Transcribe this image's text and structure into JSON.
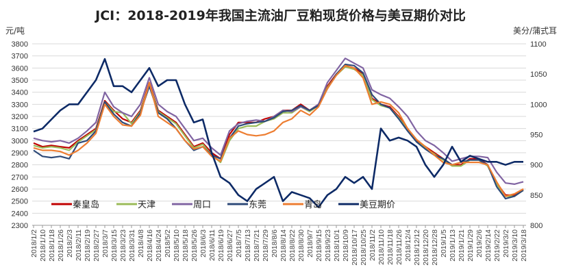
{
  "chart_data": {
    "type": "line",
    "title": "JCI：2018-2019年我国主流油厂豆粕现货价格与美豆期价对比",
    "ylabel": "元/吨",
    "y2label": "美分/蒲式耳",
    "ylim": [
      2300,
      3800
    ],
    "y2lim": [
      800,
      1100
    ],
    "yticks": [
      2300,
      2400,
      2500,
      2600,
      2700,
      2800,
      2900,
      3000,
      3100,
      3200,
      3300,
      3400,
      3500,
      3600,
      3700,
      3800
    ],
    "y2ticks": [
      800,
      850,
      900,
      950,
      1000,
      1050,
      1100
    ],
    "grid": true,
    "legend_position": "bottom-inside",
    "categories": [
      "2018/1/2",
      "2018/1/10",
      "2018/1/18",
      "2018/1/26",
      "2018/2/3",
      "2018/2/11",
      "2018/2/19",
      "2018/2/27",
      "2018/3/7",
      "2018/3/15",
      "2018/3/23",
      "2018/3/31",
      "2018/4/8",
      "2018/4/16",
      "2018/4/24",
      "2018/5/2",
      "2018/5/10",
      "2018/5/18",
      "2018/5/26",
      "2018/6/3",
      "2018/6/11",
      "2018/6/19",
      "2018/6/27",
      "2018/7/5",
      "2018/7/13",
      "2018/7/21",
      "2018/7/29",
      "2018/8/6",
      "2018/8/14",
      "2018/8/22",
      "2018/8/30",
      "2018/9/7",
      "2018/9/15",
      "2018/9/23",
      "2018/10/1",
      "2018/10/9",
      "2018/10/17",
      "2018/10/25",
      "2018/11/2",
      "2018/11/10",
      "2018/11/18",
      "2018/11/26",
      "2018/12/4",
      "2018/12/12",
      "2018/12/20",
      "2018/12/28",
      "2019/1/5",
      "2019/1/13",
      "2019/1/21",
      "2019/1/29",
      "2019/2/6",
      "2019/2/14",
      "2019/2/22",
      "2019/3/2",
      "2019/3/10",
      "2019/3/18"
    ],
    "series": [
      {
        "name": "秦皇岛",
        "color": "#c00000",
        "axis": "left",
        "values": [
          2980,
          2950,
          2960,
          2950,
          2940,
          3000,
          3050,
          3100,
          3330,
          3250,
          3180,
          3150,
          3250,
          3480,
          3250,
          3200,
          3150,
          3050,
          2950,
          2980,
          2900,
          2850,
          3050,
          3150,
          3150,
          3150,
          3180,
          3200,
          3250,
          3250,
          3300,
          3250,
          3300,
          3450,
          3550,
          3620,
          3600,
          3550,
          3350,
          3300,
          3280,
          3200,
          3100,
          3000,
          2950,
          2900,
          2850,
          2800,
          2800,
          2850,
          2850,
          2800,
          2650,
          2550,
          2550,
          2600
        ]
      },
      {
        "name": "天津",
        "color": "#9bbb59",
        "axis": "left",
        "values": [
          2960,
          2940,
          2950,
          2940,
          2920,
          2990,
          3040,
          3090,
          3320,
          3240,
          3230,
          3140,
          3240,
          3470,
          3240,
          3190,
          3140,
          3040,
          2940,
          2970,
          2880,
          2820,
          3000,
          3100,
          3120,
          3120,
          3160,
          3180,
          3230,
          3230,
          3280,
          3240,
          3290,
          3440,
          3540,
          3610,
          3590,
          3540,
          3340,
          3290,
          3270,
          3190,
          3090,
          2990,
          2940,
          2890,
          2840,
          2790,
          2790,
          2840,
          2840,
          2790,
          2640,
          2540,
          2540,
          2590
        ]
      },
      {
        "name": "周口",
        "color": "#8064a2",
        "axis": "left",
        "values": [
          3020,
          3000,
          2990,
          3000,
          2980,
          3020,
          3080,
          3150,
          3400,
          3280,
          3230,
          3200,
          3300,
          3520,
          3300,
          3240,
          3200,
          3100,
          3000,
          3020,
          2940,
          2880,
          3080,
          3140,
          3160,
          3170,
          3160,
          3200,
          3250,
          3240,
          3280,
          3250,
          3300,
          3480,
          3580,
          3680,
          3640,
          3600,
          3420,
          3380,
          3350,
          3280,
          3200,
          3080,
          3000,
          2960,
          2900,
          2830,
          2850,
          2870,
          2870,
          2860,
          2740,
          2650,
          2640,
          2660
        ]
      },
      {
        "name": "东莞",
        "color": "#2e4a78",
        "axis": "left",
        "values": [
          2920,
          2870,
          2860,
          2870,
          2850,
          2980,
          3000,
          3080,
          3320,
          3220,
          3150,
          3120,
          3230,
          3450,
          3230,
          3180,
          3100,
          3000,
          2920,
          2950,
          2880,
          2850,
          3020,
          3120,
          3140,
          3150,
          3160,
          3190,
          3240,
          3250,
          3290,
          3250,
          3290,
          3430,
          3550,
          3630,
          3620,
          3560,
          3380,
          3300,
          3270,
          3180,
          3080,
          2990,
          2930,
          2880,
          2850,
          2800,
          2820,
          2840,
          2840,
          2800,
          2620,
          2520,
          2540,
          2590
        ]
      },
      {
        "name": "青岛",
        "color": "#ed7d31",
        "axis": "left",
        "values": [
          2940,
          2920,
          2920,
          2910,
          2880,
          2920,
          2980,
          3060,
          3300,
          3200,
          3130,
          3120,
          3210,
          3480,
          3200,
          3150,
          3100,
          3000,
          2930,
          2950,
          2870,
          2830,
          3020,
          3080,
          3050,
          3040,
          3050,
          3080,
          3150,
          3180,
          3250,
          3210,
          3280,
          3430,
          3540,
          3620,
          3600,
          3520,
          3300,
          3320,
          3300,
          3230,
          3100,
          3010,
          2950,
          2880,
          2820,
          2800,
          2820,
          2820,
          2820,
          2800,
          2660,
          2540,
          2560,
          2600
        ]
      },
      {
        "name": "美豆期价",
        "color": "#0d2a66",
        "axis": "right",
        "values": [
          955,
          960,
          975,
          990,
          1000,
          1000,
          1020,
          1040,
          1075,
          1030,
          1030,
          1020,
          1040,
          1060,
          1030,
          1040,
          1040,
          1000,
          970,
          975,
          920,
          880,
          870,
          850,
          840,
          860,
          870,
          880,
          840,
          855,
          850,
          845,
          830,
          850,
          860,
          880,
          870,
          880,
          860,
          960,
          940,
          945,
          940,
          930,
          900,
          880,
          900,
          930,
          905,
          915,
          910,
          905,
          905,
          900,
          905,
          905
        ]
      }
    ]
  }
}
